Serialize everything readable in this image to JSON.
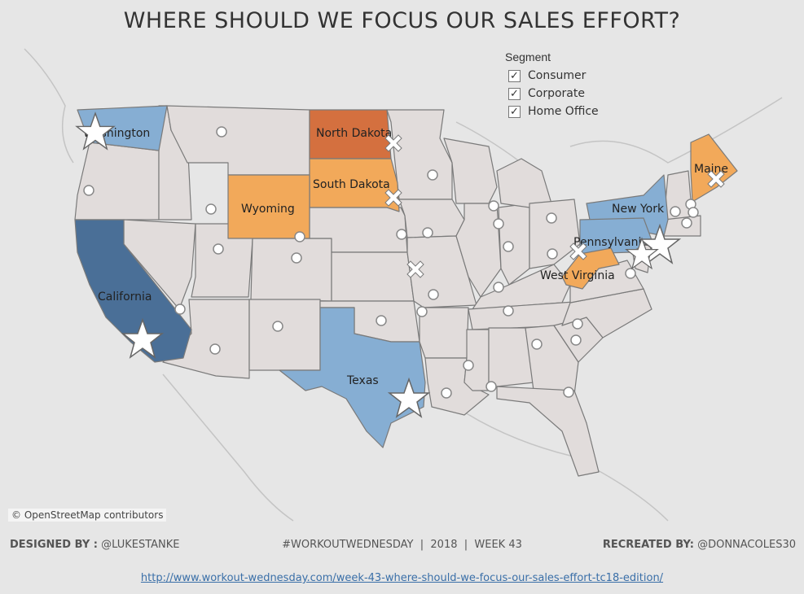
{
  "title": "WHERE SHOULD WE FOCUS OUR SALES EFFORT?",
  "attribution": "© OpenStreetMap contributors",
  "legend": {
    "title": "Segment",
    "items": [
      {
        "label": "Consumer",
        "checked": true
      },
      {
        "label": "Corporate",
        "checked": true
      },
      {
        "label": "Home Office",
        "checked": true
      }
    ]
  },
  "colors": {
    "dark_blue": "#4a6f97",
    "light_blue": "#86aed3",
    "dark_orange": "#d4703f",
    "light_orange": "#f2a95a",
    "neutral": "#e1dcdb",
    "background": "#e6e6e6"
  },
  "states": {
    "washington": "Washington",
    "california": "California",
    "texas": "Texas",
    "new_york": "New York",
    "pennsylvania": "Pennsylvania",
    "north_dakota": "North Dakota",
    "south_dakota": "South Dakota",
    "wyoming": "Wyoming",
    "maine": "Maine",
    "west_virginia": "West Virginia"
  },
  "marker_types": [
    "star-icon",
    "x-icon",
    "circle-icon"
  ],
  "footer": {
    "designed_by_label": "DESIGNED BY :",
    "designed_by": "@LUKESTANKE",
    "center": "#WORKOUTWEDNESDAY  |  2018  |  WEEK 43",
    "recreated_by_label": "RECREATED BY:",
    "recreated_by": "@DONNACOLES30"
  },
  "url": "http://www.workout-wednesday.com/week-43-where-should-we-focus-our-sales-effort-tc18-edition/"
}
